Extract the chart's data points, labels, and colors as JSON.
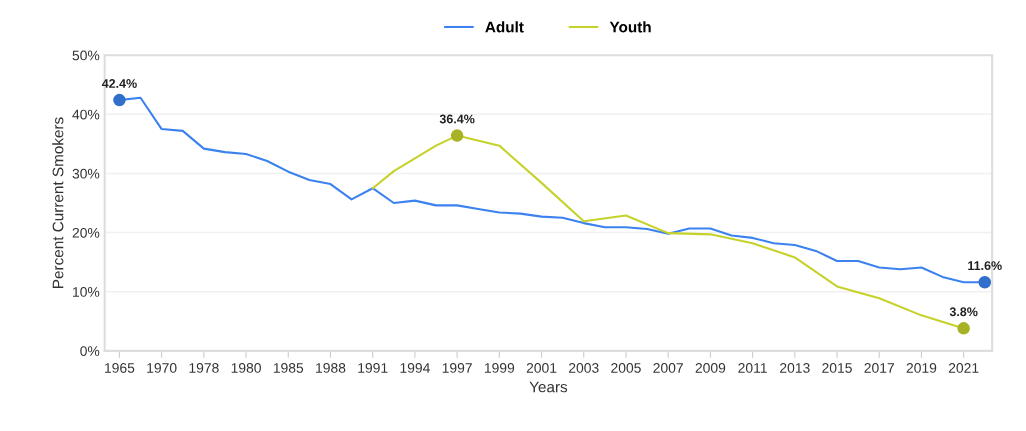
{
  "chart_data": {
    "type": "line",
    "xlabel": "Years",
    "ylabel": "Percent Current Smokers",
    "categories": [
      "1965",
      null,
      "1970",
      null,
      "1978",
      null,
      "1980",
      null,
      "1985",
      null,
      "1988",
      null,
      "1991",
      null,
      "1994",
      null,
      "1997",
      null,
      "1999",
      null,
      "2001",
      null,
      "2003",
      null,
      "2005",
      null,
      "2007",
      null,
      "2009",
      null,
      "2011",
      null,
      "2013",
      null,
      "2015",
      null,
      "2017",
      null,
      "2019",
      null,
      "2021",
      null
    ],
    "series": [
      {
        "name": "Adult",
        "color": "#3b82f0",
        "values": [
          42.4,
          42.8,
          37.5,
          37.2,
          34.2,
          33.6,
          33.3,
          32.1,
          30.3,
          28.9,
          28.2,
          25.6,
          27.5,
          25.0,
          25.4,
          24.6,
          24.6,
          24.0,
          23.4,
          23.2,
          22.7,
          22.5,
          21.6,
          20.9,
          20.9,
          20.6,
          19.8,
          20.7,
          20.7,
          19.5,
          19.1,
          18.2,
          17.9,
          16.9,
          15.2,
          15.2,
          14.1,
          13.8,
          14.1,
          12.5,
          11.6,
          11.6
        ],
        "value_labels": [
          "42.4%",
          null,
          null,
          null,
          null,
          null,
          null,
          null,
          null,
          null,
          null,
          null,
          null,
          null,
          null,
          null,
          null,
          null,
          null,
          null,
          null,
          null,
          null,
          null,
          null,
          null,
          null,
          null,
          null,
          null,
          null,
          null,
          null,
          null,
          null,
          null,
          null,
          null,
          null,
          null,
          null,
          "11.6%"
        ]
      },
      {
        "name": "Youth",
        "color": "#c5d22a",
        "values": [
          null,
          null,
          null,
          null,
          null,
          null,
          null,
          null,
          null,
          null,
          null,
          null,
          27.5,
          30.4,
          null,
          34.7,
          36.4,
          null,
          34.7,
          null,
          28.4,
          null,
          21.9,
          null,
          22.9,
          null,
          19.9,
          null,
          19.7,
          null,
          18.2,
          null,
          15.8,
          null,
          10.9,
          null,
          8.9,
          null,
          6.0,
          null,
          3.8,
          null
        ],
        "value_labels": [
          null,
          null,
          null,
          null,
          null,
          null,
          null,
          null,
          null,
          null,
          null,
          null,
          null,
          null,
          null,
          null,
          "36.4%",
          null,
          null,
          null,
          null,
          null,
          null,
          null,
          null,
          null,
          null,
          null,
          null,
          null,
          null,
          null,
          null,
          null,
          null,
          null,
          null,
          null,
          null,
          null,
          "3.8%",
          null
        ]
      }
    ],
    "ylim": [
      0,
      50
    ],
    "yticks": [
      {
        "value": 0,
        "label": "0%"
      },
      {
        "value": 10,
        "label": "10%"
      },
      {
        "value": 20,
        "label": "20%"
      },
      {
        "value": 30,
        "label": "30%"
      },
      {
        "value": 40,
        "label": "40%"
      },
      {
        "value": 50,
        "label": "50%"
      }
    ],
    "grid": "y",
    "legend": "top"
  }
}
